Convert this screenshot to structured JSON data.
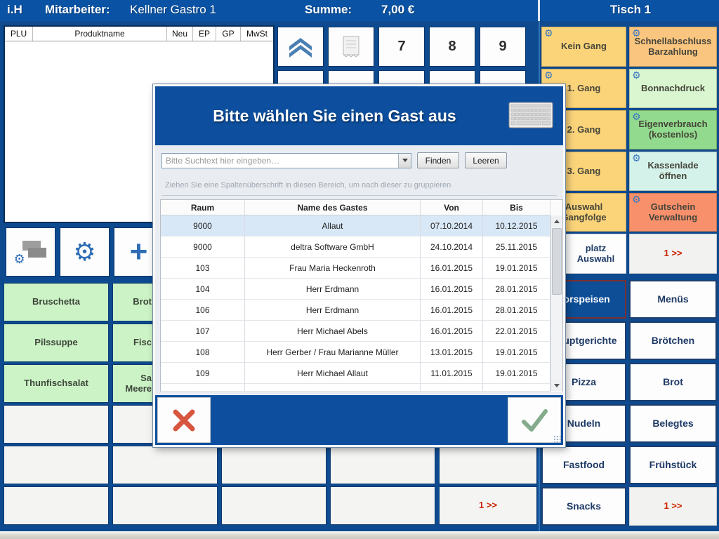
{
  "top_bar": {
    "app_badge": "i.H",
    "employee_label": "Mitarbeiter:",
    "employee_name": "Kellner Gastro 1",
    "sum_label": "Summe:",
    "sum_value": "7,00 €",
    "table_name": "Tisch 1"
  },
  "product_list": {
    "columns": [
      "PLU",
      "Produktname",
      "Neu",
      "EP",
      "GP",
      "MwSt"
    ]
  },
  "numpad": {
    "keys": [
      "7",
      "8",
      "9"
    ]
  },
  "icons": {
    "gear": "⚙",
    "plus": "+"
  },
  "products": {
    "visible": [
      "Bruschetta",
      "Pilssuppe",
      "Thunfischsalat"
    ],
    "partial": [
      "Brot",
      "Fisc",
      "Sa\nMeere"
    ],
    "page_label": "1 >>"
  },
  "fn": [
    "Kein Gang",
    "Schnellabschluss Barzahlung",
    "1. Gang",
    "Bonnachdruck",
    "2. Gang",
    "Eigenverbrauch (kostenlos)",
    "3. Gang",
    "Kassenlade öffnen",
    "Auswahl Gangfolge",
    "Gutschein Verwaltung",
    "platz Auswahl",
    "1 >>"
  ],
  "categories": [
    "Vorspeisen",
    "Menüs",
    "Hauptgerichte",
    "Brötchen",
    "Pizza",
    "Brot",
    "Nudeln",
    "Belegtes",
    "Fastfood",
    "Frühstück",
    "Snacks",
    "1 >>"
  ],
  "colors": {
    "bar_blue": "#0a52a3",
    "border_navy": "#0e4a8f",
    "accent_blue": "#0d4e97",
    "btn_yellow": "#fbd47a",
    "btn_orange": "#f9c57f",
    "btn_green_light": "#d9f6d0",
    "btn_green": "#92da8d",
    "btn_teal": "#d5f2ea",
    "btn_salmon": "#f9906c",
    "product_green": "#ccf3c6",
    "red_text": "#cc2200"
  },
  "dialog": {
    "title": "Bitte wählen Sie einen Gast aus",
    "search_placeholder": "Bitte Suchtext hier eingeben…",
    "find_label": "Finden",
    "clear_label": "Leeren",
    "group_hint": "Ziehen Sie eine Spaltenüberschrift in diesen Bereich, um nach dieser zu gruppieren",
    "columns": [
      "Raum",
      "Name des Gastes",
      "Von",
      "Bis"
    ],
    "rows": [
      [
        "9000",
        "Allaut",
        "07.10.2014",
        "10.12.2015"
      ],
      [
        "9000",
        "deltra Software GmbH",
        "24.10.2014",
        "25.11.2015"
      ],
      [
        "103",
        "Frau Maria Heckenroth",
        "16.01.2015",
        "19.01.2015"
      ],
      [
        "104",
        "Herr Erdmann",
        "16.01.2015",
        "28.01.2015"
      ],
      [
        "106",
        "Herr Erdmann",
        "16.01.2015",
        "28.01.2015"
      ],
      [
        "107",
        "Herr Michael Abels",
        "16.01.2015",
        "22.01.2015"
      ],
      [
        "108",
        "Herr Gerber / Frau Marianne Müller",
        "13.01.2015",
        "19.01.2015"
      ],
      [
        "109",
        "Herr Michael Allaut",
        "11.01.2015",
        "19.01.2015"
      ]
    ],
    "selected_row": 0
  }
}
